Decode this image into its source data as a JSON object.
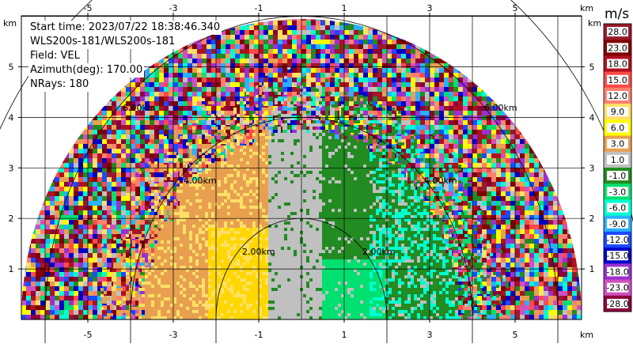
{
  "info": {
    "start_time": "Start time: 2023/07/22 18:38:46.340",
    "instrument": "WLS200s-181/WLS200s-181",
    "field": "Field: VEL",
    "azimuth": "Azimuth(deg): 170.00",
    "nrays": "NRays: 180"
  },
  "axes": {
    "x_unit": "km",
    "y_unit": "km",
    "x_ticks": [
      "-5",
      "-3",
      "-1",
      "1",
      "3",
      "5"
    ],
    "y_ticks": [
      "5",
      "4",
      "3",
      "2",
      "1"
    ]
  },
  "rings": [
    "2.00km",
    "4.00km",
    "6.00km"
  ],
  "colorbar": {
    "title": "m/s",
    "labels": [
      "28.0",
      "23.0",
      "18.0",
      "15.0",
      "12.0",
      "9.0",
      "6.0",
      "3.0",
      "1.0",
      "-1.0",
      "-3.0",
      "-6.0",
      "-9.0",
      "-12.0",
      "-15.0",
      "-18.0",
      "-23.0",
      "-28.0"
    ],
    "colors": [
      "#9a1a2a",
      "#800000",
      "#b01020",
      "#ff4a4a",
      "#ff8070",
      "#ffe066",
      "#ffff00",
      "#e8a050",
      "#c0c0c0",
      "#228b22",
      "#00e070",
      "#00ffd0",
      "#2ab0ff",
      "#1a4aff",
      "#0000c8",
      "#9a30d0",
      "#d050c0",
      "#8a003a"
    ]
  }
}
